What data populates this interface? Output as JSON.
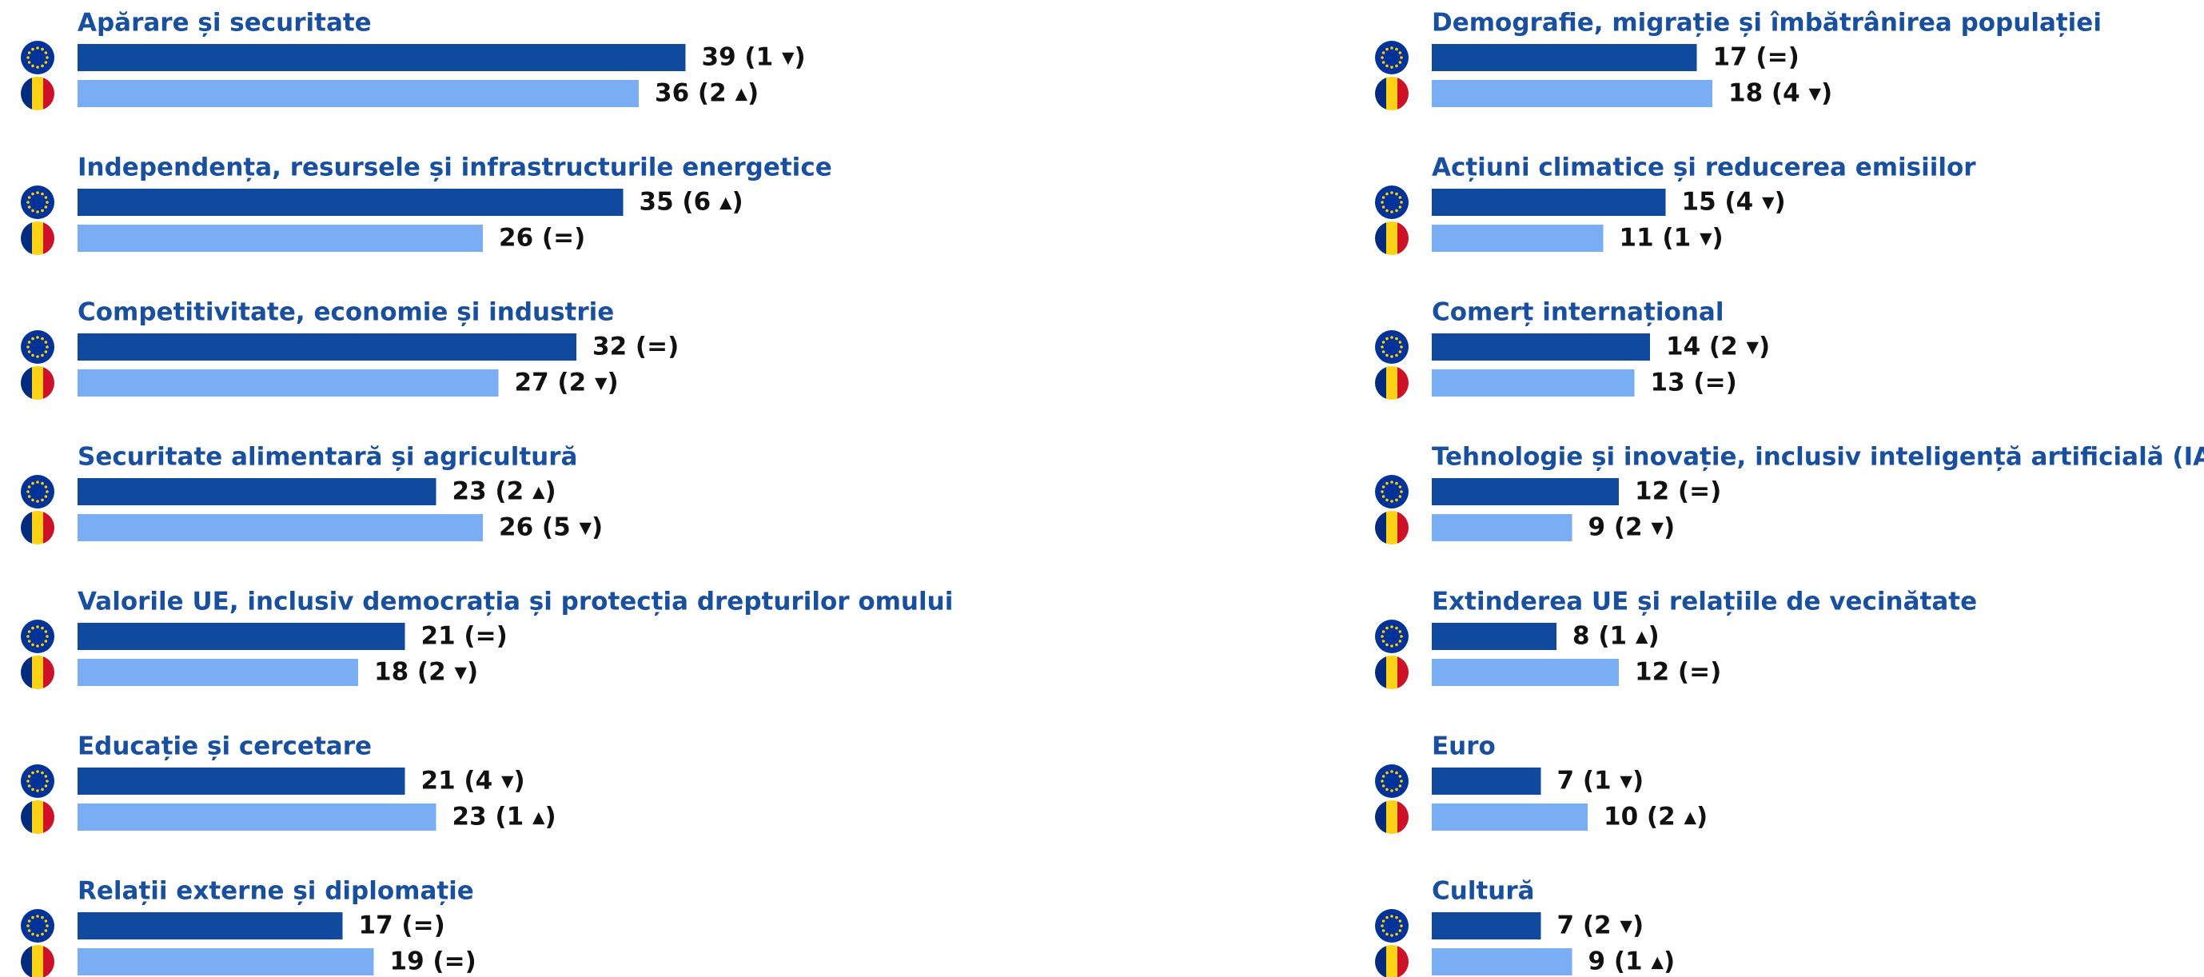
{
  "chart_data": {
    "type": "bar",
    "categories": [
      "Apărare și securitate",
      "Independența, resursele și infrastructurile energetice",
      "Competitivitate, economie și industrie",
      "Securitate alimentară și agricultură",
      "Valorile UE, inclusiv democrația și protecția drepturilor omului",
      "Educație și cercetare",
      "Relații externe și diplomație",
      "Demografie, migrație și îmbătrânirea populației",
      "Acțiuni climatice și reducerea emisiilor",
      "Comerț internațional",
      "Tehnologie și inovație, inclusiv inteligență artificială (IA)",
      "Extinderea UE și relațiile de vecinătate",
      "Euro",
      "Cultură"
    ],
    "series": [
      {
        "color": "#0f4a9f",
        "values": [
          39,
          35,
          32,
          23,
          21,
          21,
          17,
          17,
          15,
          14,
          12,
          8,
          7,
          7
        ],
        "value_labels": [
          "39 (1 ▾)",
          "35 (6 ▴)",
          "32 (=)",
          "23 (2 ▴)",
          "21 (=)",
          "21 (4 ▾)",
          "17 (=)",
          "17 (=)",
          "15 (4 ▾)",
          "14 (2 ▾)",
          "12 (=)",
          "8 (1 ▴)",
          "7 (1 ▾)",
          "7 (2 ▾)"
        ]
      },
      {
        "color": "#7aaef4",
        "values": [
          36,
          26,
          27,
          26,
          18,
          23,
          19,
          18,
          11,
          13,
          9,
          12,
          10,
          9
        ],
        "value_labels": [
          "36 (2 ▴)",
          "26 (=)",
          "27 (2 ▾)",
          "26 (5 ▾)",
          "18 (2 ▾)",
          "23 (1 ▴)",
          "19 (=)",
          "18 (4 ▾)",
          "11 (1 ▾)",
          "13 (=)",
          "9 (2 ▾)",
          "12 (=)",
          "10 (2 ▴)",
          "9 (1 ▴)"
        ]
      }
    ]
  }
}
